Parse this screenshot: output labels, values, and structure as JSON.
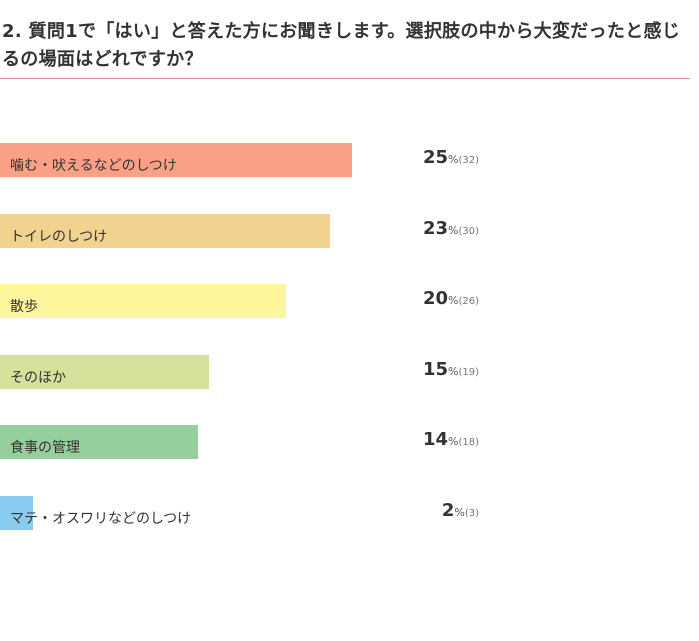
{
  "title": "2. 質問1で「はい」と答えた方にお聞きします。選択肢の中から大変だったと感じるの場面はどれですか？",
  "chart_data": {
    "type": "bar",
    "orientation": "horizontal",
    "title": "2. 質問1で「はい」と答えた方にお聞きします。選択肢の中から大変だったと感じるの場面はどれですか？",
    "categories": [
      "噛む・吠えるなどのしつけ",
      "トイレのしつけ",
      "散歩",
      "そのほか",
      "食事の管理",
      "マテ・オスワリなどのしつけ"
    ],
    "values": [
      25,
      23,
      20,
      15,
      14,
      2
    ],
    "counts": [
      32,
      30,
      26,
      19,
      18,
      3
    ],
    "percent_symbol": "%",
    "colors": [
      "#f9a086",
      "#f1d28f",
      "#fdf69c",
      "#d6e19b",
      "#95cf9d",
      "#88cdef"
    ]
  }
}
